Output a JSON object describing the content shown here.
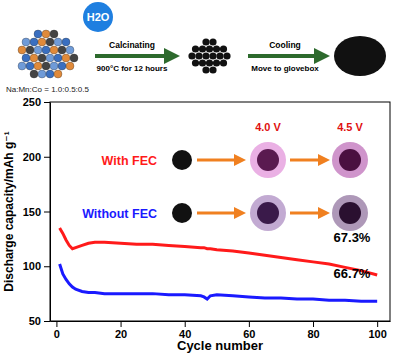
{
  "diagram": {
    "bubble": "H2O",
    "ratio": "Na:Mn:Co = 1.0:0.5:0.5",
    "step1_top": "Calcinating",
    "step1_bottom": "900°C for 12 hours",
    "step2_top": "Cooling",
    "step2_bottom": "Move to glovebox"
  },
  "chart_data": {
    "type": "line",
    "x_label": "Cycle number",
    "y_label": "Discharge capacity/mAh g⁻¹",
    "x": [
      1,
      2,
      3,
      4,
      5,
      6,
      8,
      10,
      12,
      15,
      20,
      25,
      30,
      35,
      40,
      45,
      46,
      47,
      48,
      50,
      55,
      60,
      65,
      70,
      75,
      80,
      85,
      90,
      95,
      100
    ],
    "series": [
      {
        "name": "With FEC",
        "color": "#ff1a1a",
        "line_style": "solid",
        "values": [
          135,
          130,
          124,
          119,
          116,
          117,
          119,
          121,
          122,
          122,
          121,
          120,
          120,
          119,
          118,
          117,
          117,
          116,
          116,
          115,
          114,
          112,
          110,
          108,
          106,
          104,
          102,
          99,
          96,
          92
        ]
      },
      {
        "name": "Without FEC",
        "color": "#1a1aff",
        "line_style": "solid",
        "values": [
          102,
          93,
          88,
          84,
          81,
          79,
          77,
          76,
          76,
          75,
          75,
          75,
          75,
          74,
          74,
          73,
          72,
          70,
          73,
          74,
          73,
          72,
          71,
          71,
          70,
          70,
          69,
          69,
          68,
          68
        ]
      }
    ],
    "xlim": [
      -2,
      104
    ],
    "xticks": [
      0,
      20,
      40,
      60,
      80,
      100
    ],
    "ylim": [
      50,
      250
    ],
    "yticks": [
      50,
      100,
      150,
      200,
      250
    ],
    "grid": false,
    "annotations": [
      {
        "text": "4.0 V"
      },
      {
        "text": "4.5 V"
      },
      {
        "text": "67.3%"
      },
      {
        "text": "66.7%"
      }
    ]
  }
}
